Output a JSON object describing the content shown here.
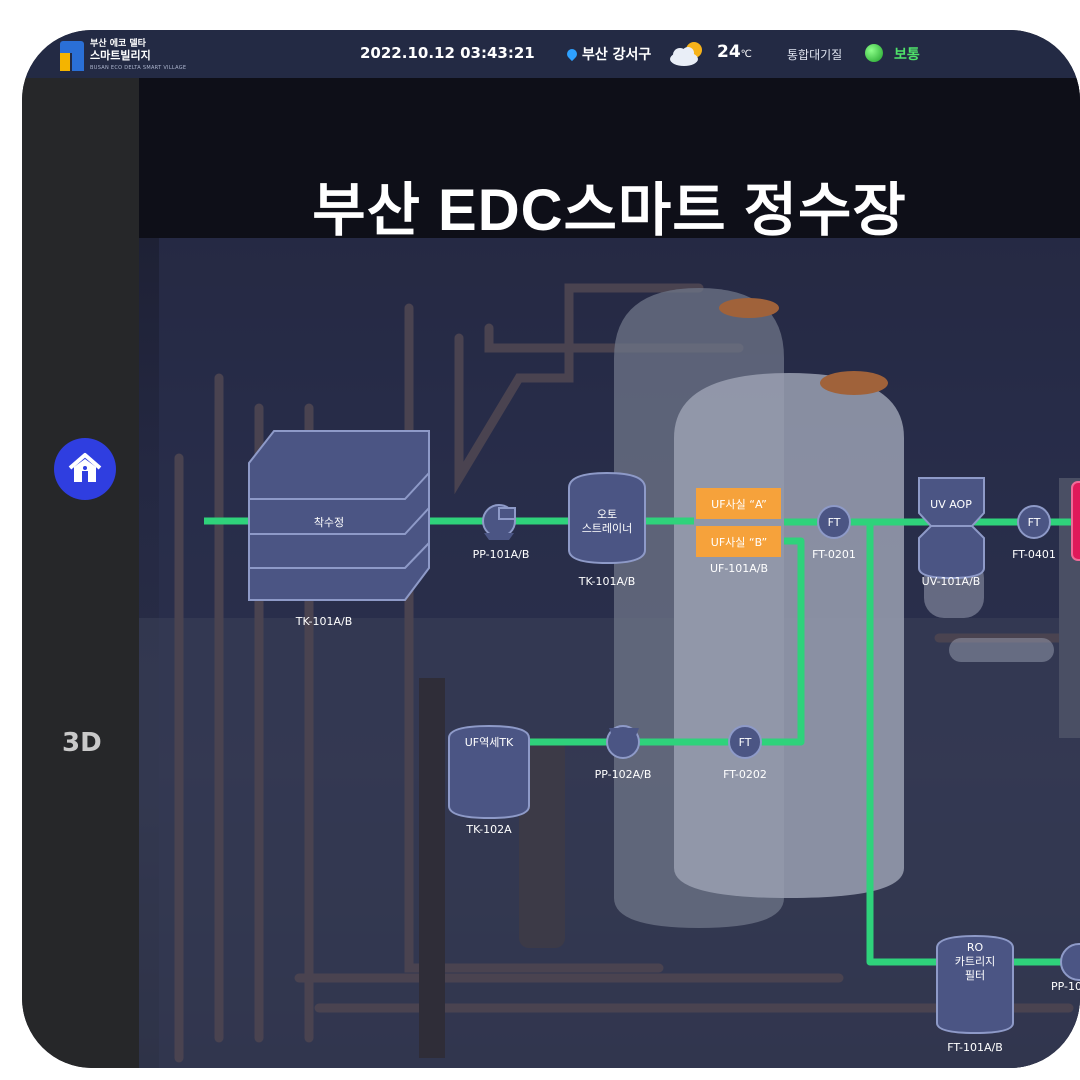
{
  "header": {
    "logo_line1": "부산 에코 델타",
    "logo_line2": "스마트빌리지",
    "logo_line3": "BUSAN ECO DELTA SMART VILLAGE",
    "datetime": "2022.10.12 03:43:21",
    "location": "부산 강서구",
    "temperature": "24",
    "temperature_unit": "℃",
    "air_quality_label": "통합대기질",
    "air_quality_value": "보통"
  },
  "sidebar": {
    "view_mode": "3D"
  },
  "main": {
    "title": "부산 EDC스마트 정수장"
  },
  "process": {
    "tk101": {
      "name": "착수정",
      "tag": "TK-101A/B"
    },
    "pp101": {
      "tag": "PP-101A/B"
    },
    "strainer": {
      "line1": "오토",
      "line2": "스트레이너",
      "tag": "TK-101A/B"
    },
    "uf_a": {
      "name": "UF사실 “A”"
    },
    "uf_b": {
      "name": "UF사실 “B”"
    },
    "uf101": {
      "tag": "UF-101A/B"
    },
    "ft0201": {
      "symbol": "FT",
      "tag": "FT-0201"
    },
    "uv": {
      "name": "UV AOP",
      "tag": "UV-101A/B"
    },
    "ft0401": {
      "symbol": "FT",
      "tag": "FT-0401"
    },
    "uf_backwash": {
      "name": "UF역세TK",
      "tag": "TK-102A"
    },
    "pp102": {
      "tag": "PP-102A/B"
    },
    "ft0202": {
      "symbol": "FT",
      "tag": "FT-0202"
    },
    "ro": {
      "line1": "RO",
      "line2": "카트리지",
      "line3": "필터",
      "tag": "FT-101A/B"
    },
    "pp_partial": {
      "tag": "PP-10"
    }
  }
}
